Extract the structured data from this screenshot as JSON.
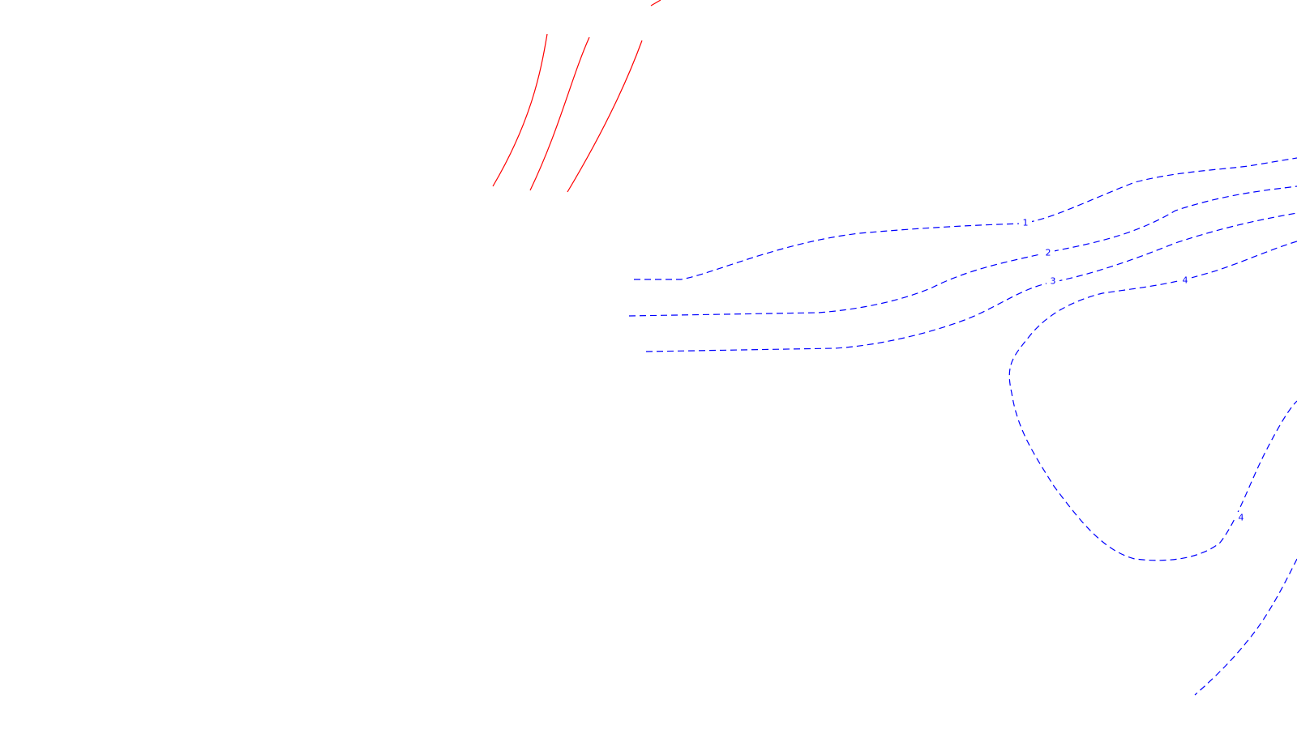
{
  "colors": {
    "background": "#ffffff",
    "solid_lines": "#ff0000",
    "contours": "#0000ff"
  },
  "contour_labels": {
    "c1": "1",
    "c2": "2",
    "c3": "3",
    "c4_upper": "4",
    "c4_lower": "4"
  }
}
